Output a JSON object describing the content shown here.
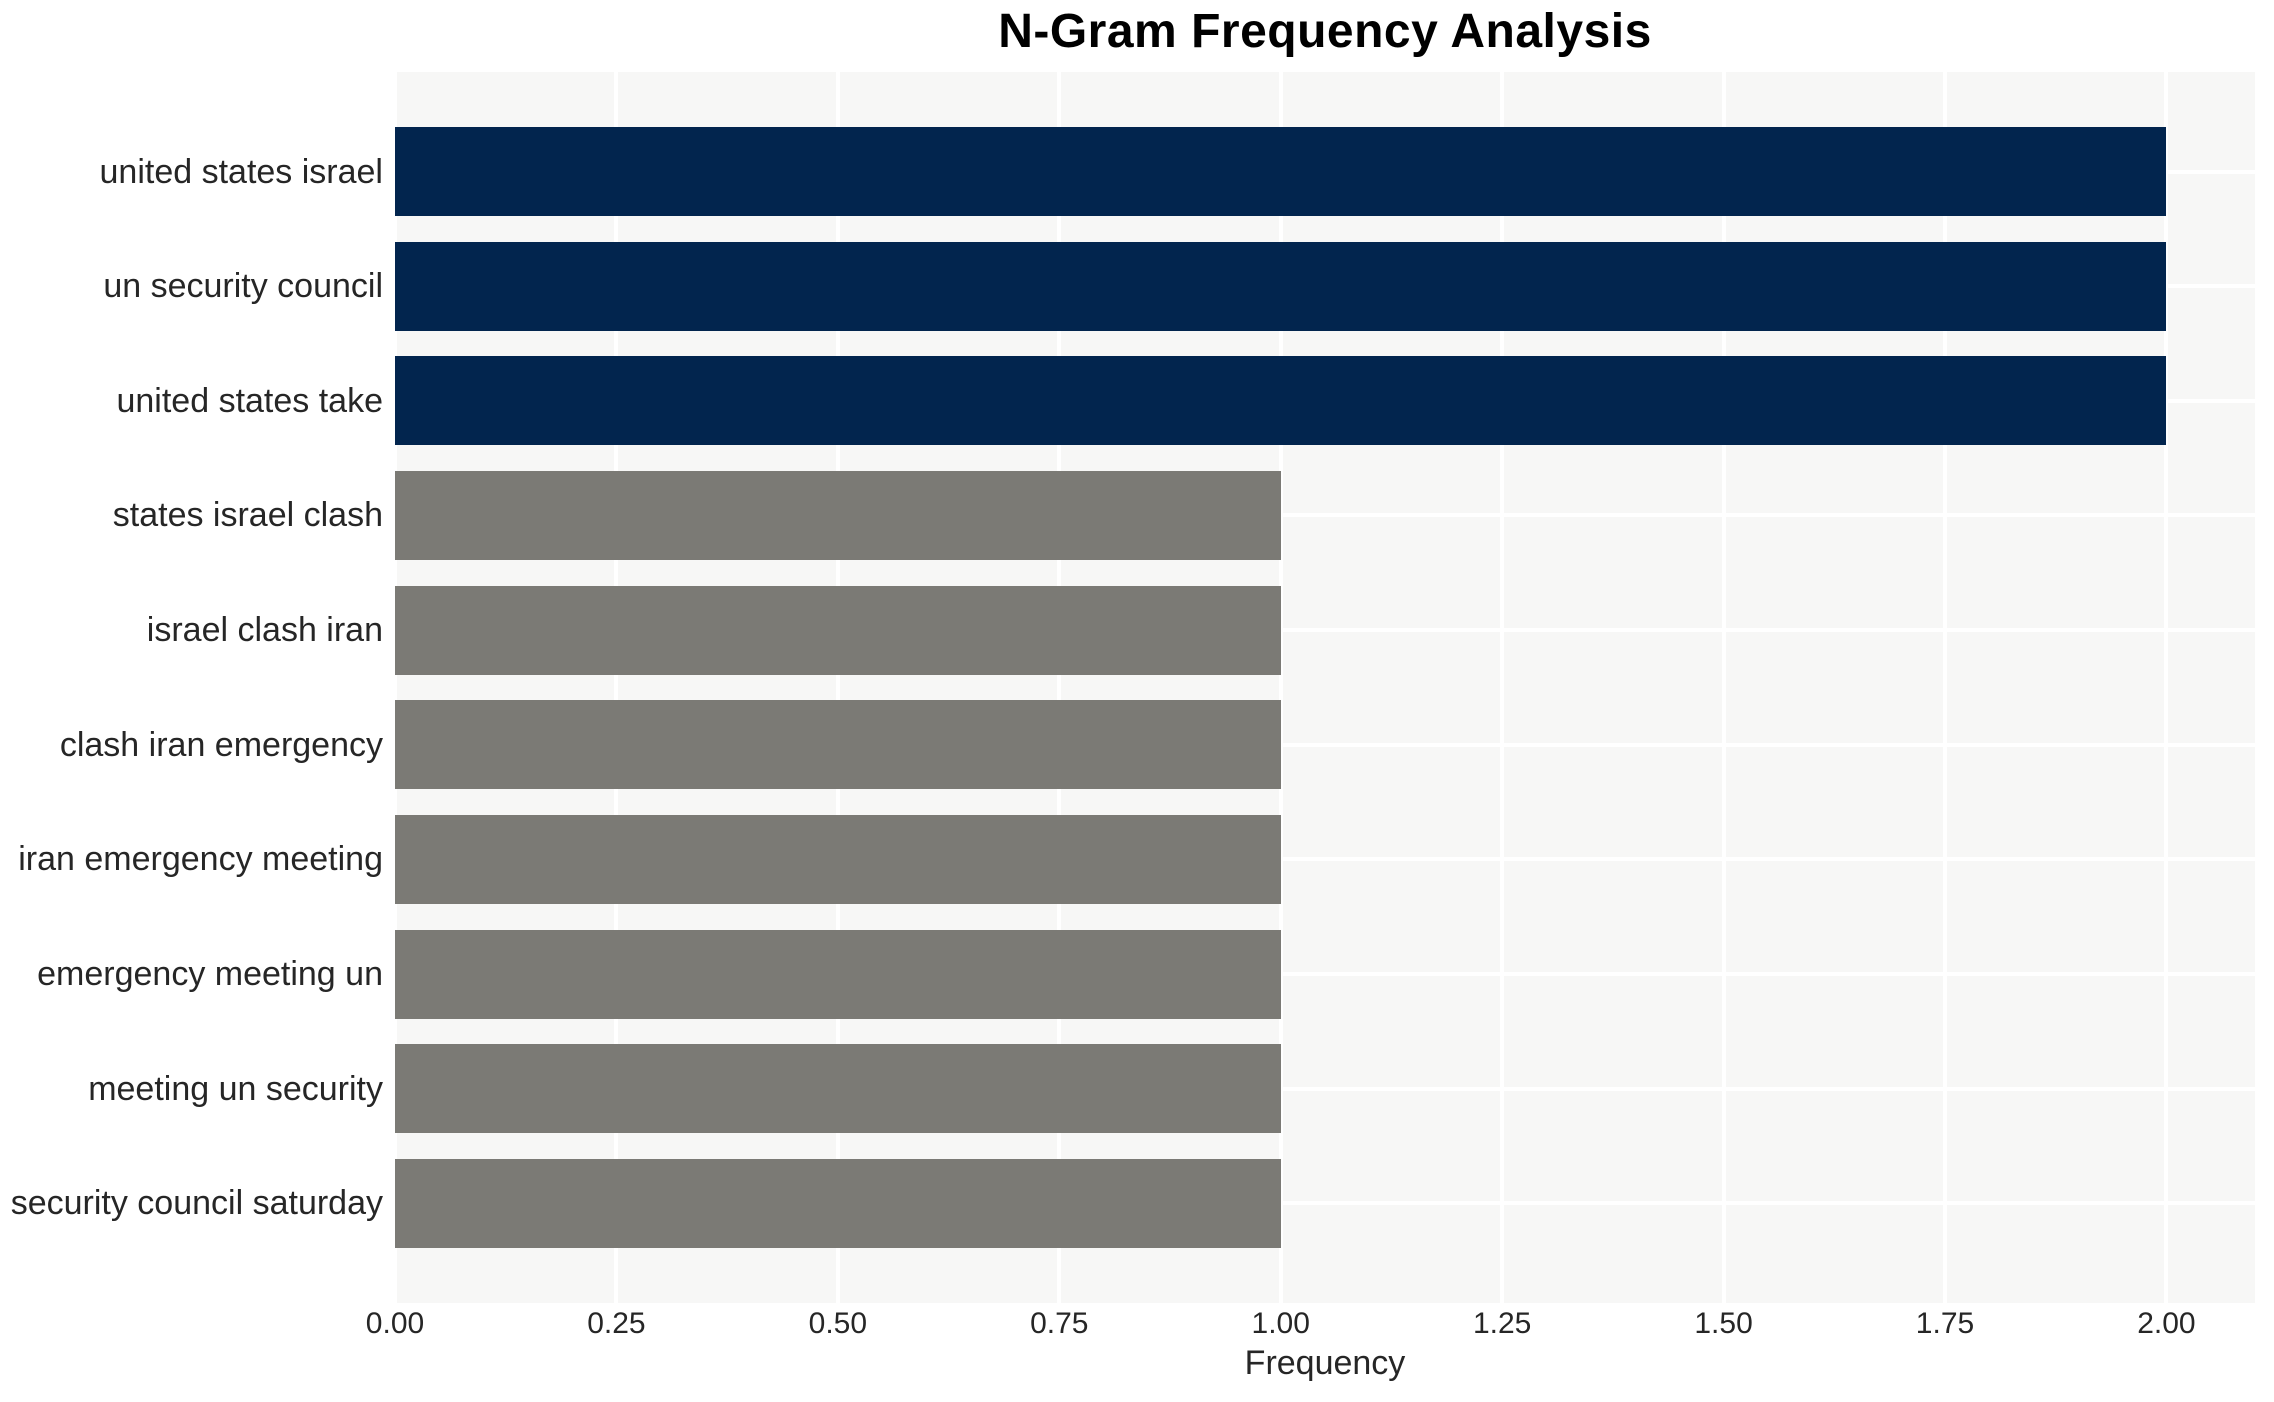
{
  "chart_data": {
    "type": "bar",
    "orientation": "horizontal",
    "title": "N-Gram Frequency Analysis",
    "xlabel": "Frequency",
    "ylabel": "",
    "categories": [
      "united states israel",
      "un security council",
      "united states take",
      "states israel clash",
      "israel clash iran",
      "clash iran emergency",
      "iran emergency meeting",
      "emergency meeting un",
      "meeting un security",
      "security council saturday"
    ],
    "values": [
      2,
      2,
      2,
      1,
      1,
      1,
      1,
      1,
      1,
      1
    ],
    "bar_colors": [
      "#02254E",
      "#02254E",
      "#02254E",
      "#7B7A75",
      "#7B7A75",
      "#7B7A75",
      "#7B7A75",
      "#7B7A75",
      "#7B7A75",
      "#7B7A75"
    ],
    "xlim": [
      0,
      2.1
    ],
    "xticks": [
      "0.00",
      "0.25",
      "0.50",
      "0.75",
      "1.00",
      "1.25",
      "1.50",
      "1.75",
      "2.00"
    ],
    "xtick_values": [
      0,
      0.25,
      0.5,
      0.75,
      1.0,
      1.25,
      1.5,
      1.75,
      2.0
    ],
    "grid": true,
    "legend": false,
    "colors": {
      "highlight": "#02254E",
      "default": "#7B7A75",
      "plot_background": "#F7F7F6",
      "gridline": "#FFFFFF",
      "text": "#262626",
      "title_text": "#000000"
    }
  }
}
